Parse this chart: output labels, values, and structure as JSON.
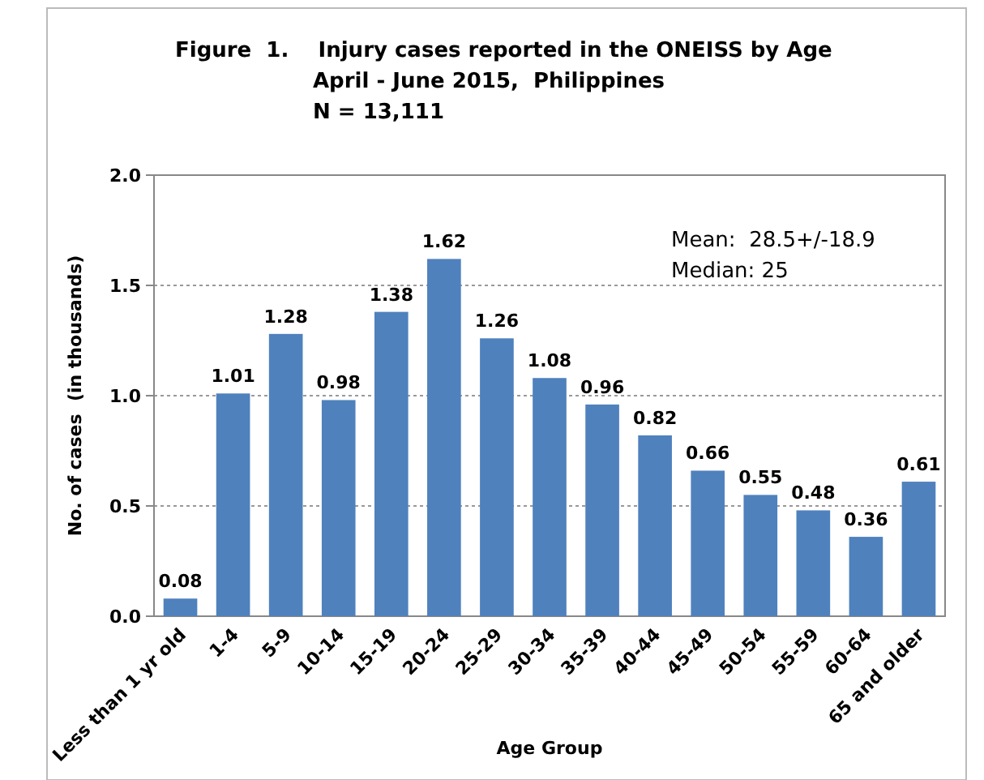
{
  "chart_data": {
    "type": "bar",
    "title": "Figure  1.    Injury cases reported in the ONEISS by Age\nApril - June 2015,  Philippines\nN = 13,111",
    "categories": [
      "Less than 1 yr old",
      "1-4",
      "5-9",
      "10-14",
      "15-19",
      "20-24",
      "25-29",
      "30-34",
      "35-39",
      "40-44",
      "45-49",
      "50-54",
      "55-59",
      "60-64",
      "65 and older"
    ],
    "values": [
      0.08,
      1.01,
      1.28,
      0.98,
      1.38,
      1.62,
      1.26,
      1.08,
      0.96,
      0.82,
      0.66,
      0.55,
      0.48,
      0.36,
      0.61
    ],
    "color": "#4f81bd",
    "data_labels": true,
    "ylim": [
      0,
      2.0
    ],
    "yticks": [
      {
        "value": 0,
        "label": "0.0"
      },
      {
        "value": 0.5,
        "label": "0.5"
      },
      {
        "value": 1,
        "label": "1.0"
      },
      {
        "value": 1.5,
        "label": "1.5"
      },
      {
        "value": 2,
        "label": "2.0"
      }
    ],
    "grid": "y",
    "xlabel": "Age Group",
    "ylabel": "No. of cases  (in thousands)",
    "annotations": [
      "Mean:  28.5+/-18.9",
      "Median: 25"
    ]
  }
}
